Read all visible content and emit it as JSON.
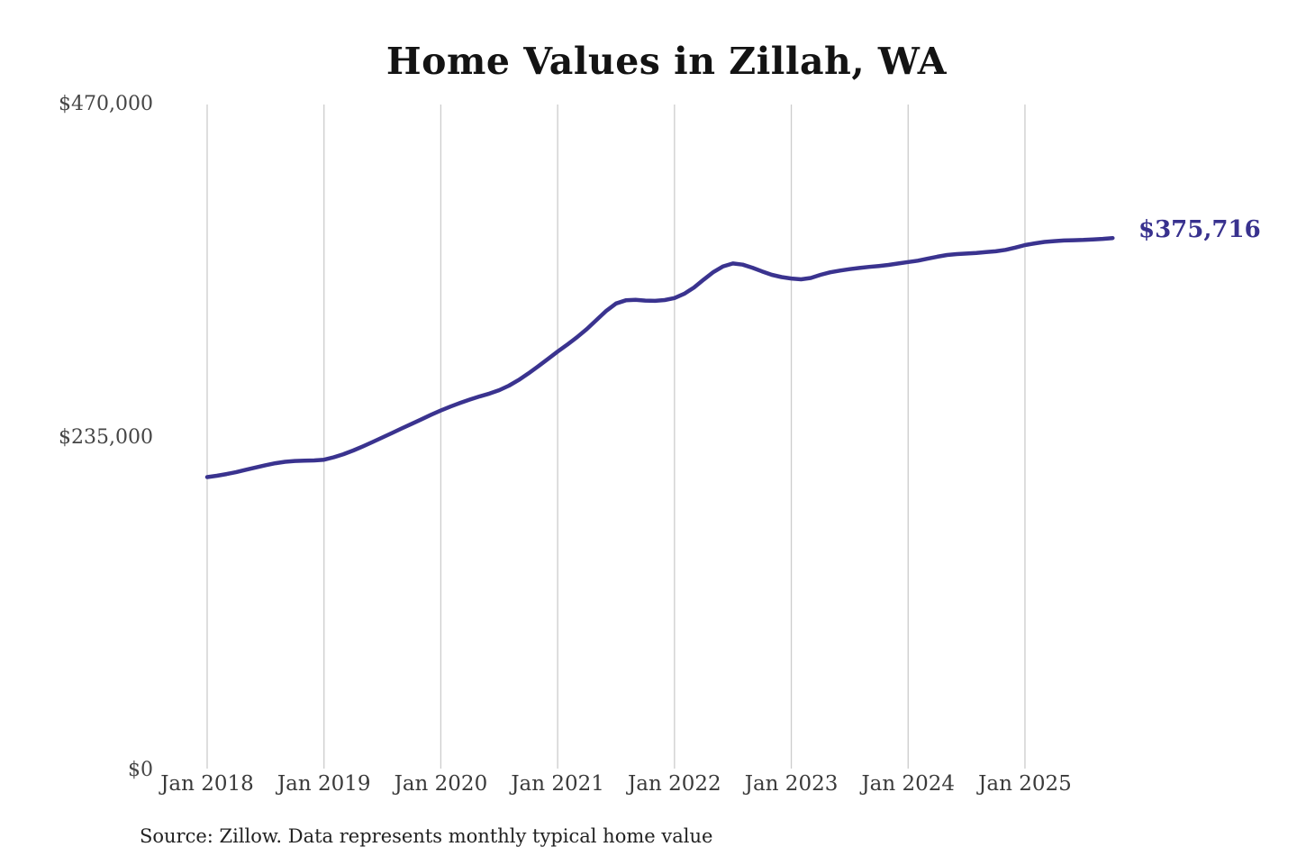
{
  "title": "Home Values in Zillah, WA",
  "end_label": "$375,716",
  "source_note": "Source: Zillow. Data represents monthly typical home value",
  "colors": {
    "line": "#3a338f",
    "end_label": "#38318e",
    "gridline": "#cccccc",
    "tick_text": "#3f3f3f",
    "title_text": "#131313",
    "background": "#ffffff"
  },
  "chart_data": {
    "type": "line",
    "title": "Home Values in Zillah, WA",
    "xlabel": "",
    "ylabel": "",
    "x_start": "Jan 2018",
    "frequency": "monthly",
    "ylim": [
      0,
      470000
    ],
    "grid": "vertical-only",
    "legend": "none",
    "y_ticks": [
      {
        "label": "$0",
        "value": 0
      },
      {
        "label": "$235,000",
        "value": 235000
      },
      {
        "label": "$470,000",
        "value": 470000
      }
    ],
    "x_ticks": [
      {
        "label": "Jan 2018",
        "year_index": 0
      },
      {
        "label": "Jan 2019",
        "year_index": 1
      },
      {
        "label": "Jan 2020",
        "year_index": 2
      },
      {
        "label": "Jan 2021",
        "year_index": 3
      },
      {
        "label": "Jan 2022",
        "year_index": 4
      },
      {
        "label": "Jan 2023",
        "year_index": 5
      },
      {
        "label": "Jan 2024",
        "year_index": 6
      },
      {
        "label": "Jan 2025",
        "year_index": 7
      }
    ],
    "series": [
      {
        "name": "Typical home value",
        "last_point_label": "$375,716",
        "values": [
          207000,
          208000,
          209200,
          210600,
          212200,
          213800,
          215400,
          216800,
          217800,
          218400,
          218600,
          218800,
          219300,
          221000,
          223200,
          225800,
          228700,
          231800,
          235000,
          238200,
          241400,
          244600,
          247800,
          251000,
          254000,
          256800,
          259400,
          261800,
          264000,
          266000,
          268400,
          271600,
          275600,
          280200,
          285200,
          290400,
          295600,
          300600,
          305800,
          311600,
          318000,
          324400,
          329600,
          331800,
          332200,
          331600,
          331400,
          332000,
          333400,
          336400,
          340800,
          346400,
          351800,
          355800,
          357800,
          357000,
          354800,
          352200,
          349800,
          348200,
          347200,
          346600,
          347600,
          349800,
          351600,
          352800,
          353800,
          354600,
          355400,
          356000,
          356800,
          357800,
          358800,
          359800,
          361200,
          362600,
          363800,
          364400,
          364800,
          365200,
          365800,
          366400,
          367400,
          369000,
          370800,
          372000,
          373000,
          373600,
          374000,
          374200,
          374400,
          374800,
          375200,
          375716
        ]
      }
    ]
  }
}
